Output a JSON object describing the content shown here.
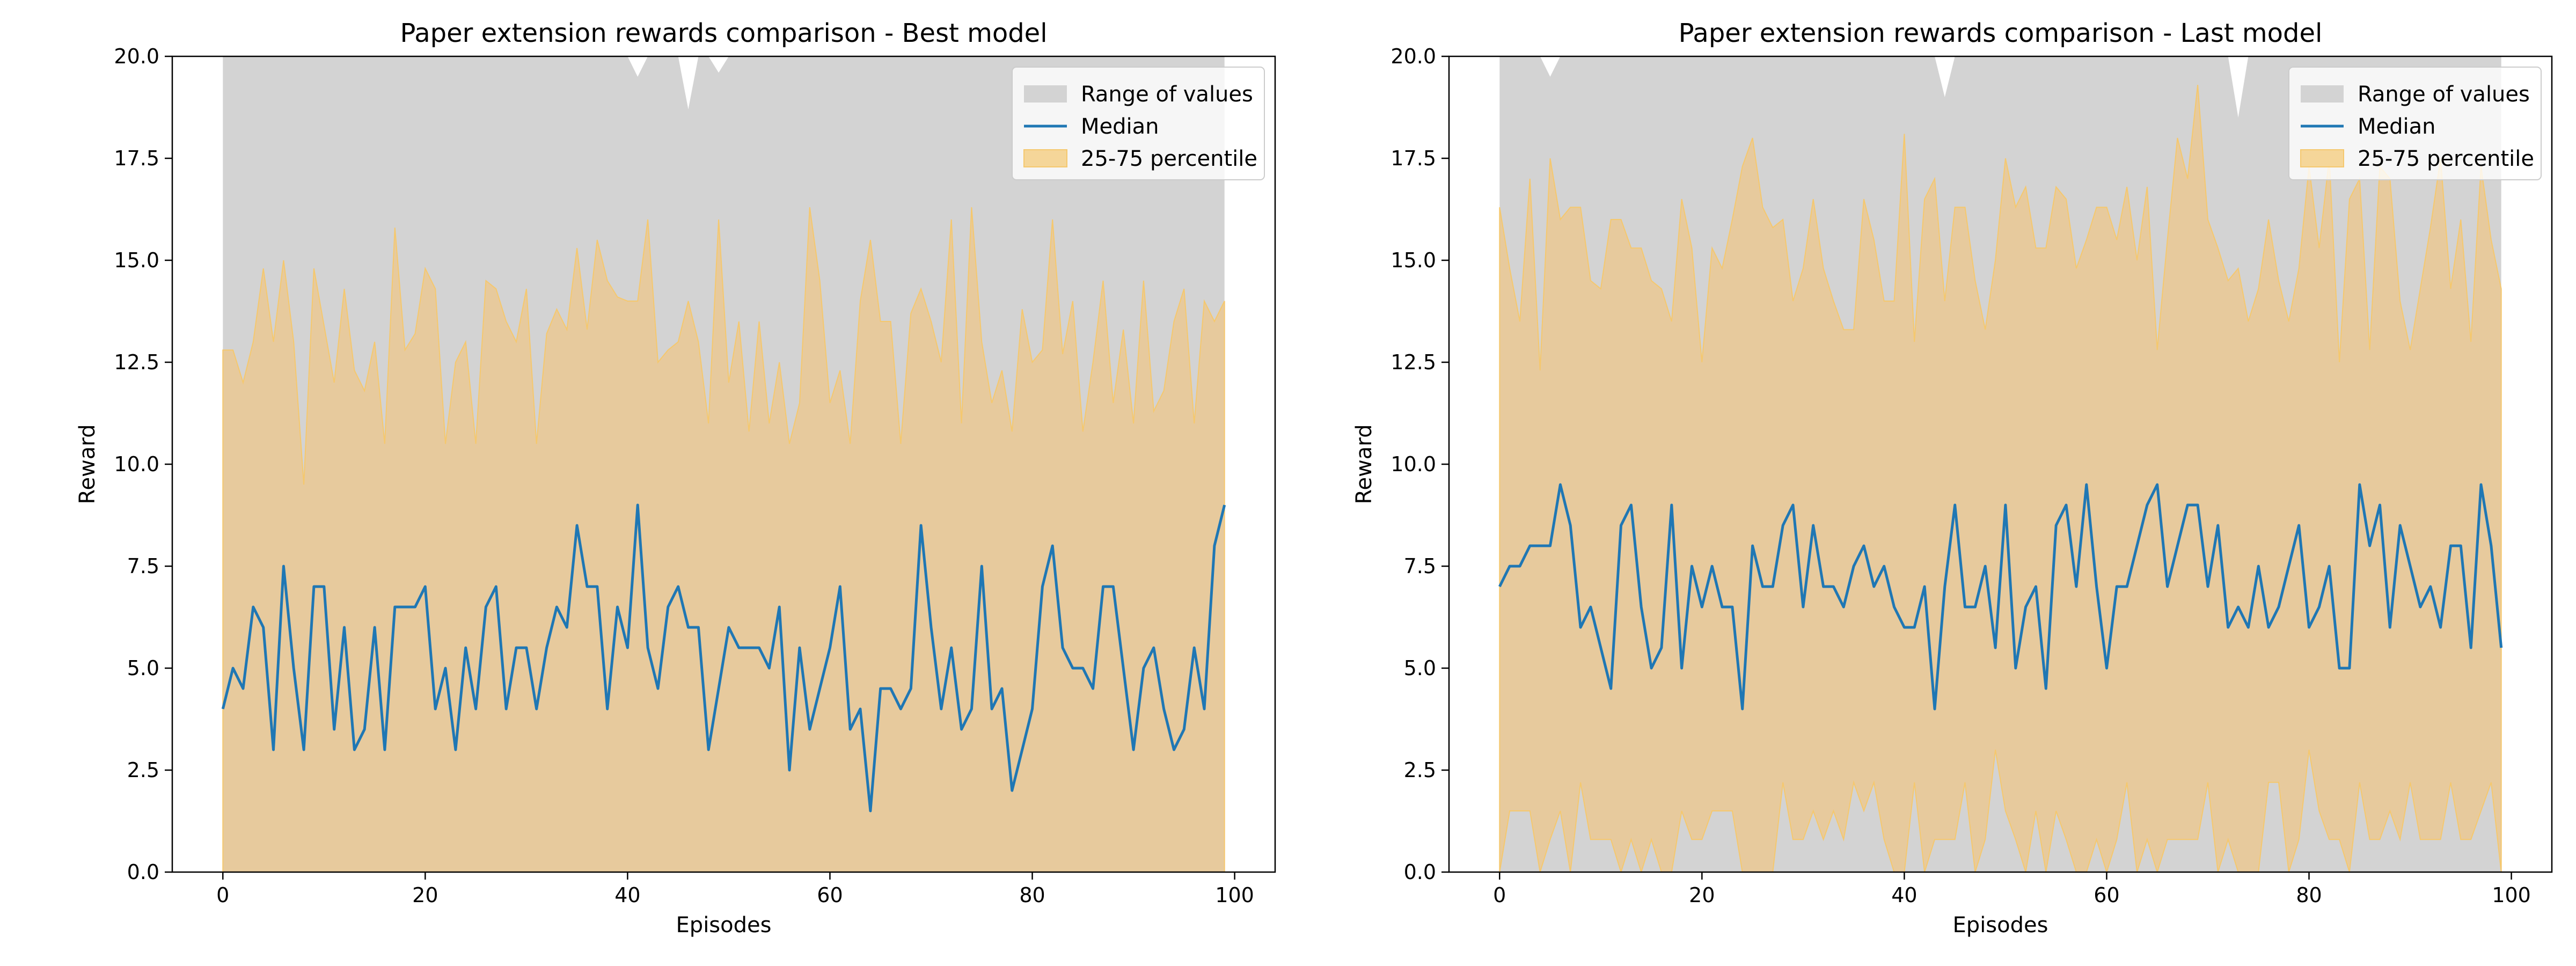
{
  "chart_data": [
    {
      "type": "area",
      "title": "Paper extension rewards comparison - Best model",
      "xlabel": "Episodes",
      "ylabel": "Reward",
      "xlim": [
        -5,
        104
      ],
      "ylim": [
        0,
        20
      ],
      "xticks": [
        0,
        20,
        40,
        60,
        80,
        100
      ],
      "yticks": [
        0.0,
        2.5,
        5.0,
        7.5,
        10.0,
        12.5,
        15.0,
        17.5,
        20.0
      ],
      "grid": false,
      "legend": {
        "position": "top-right",
        "entries": [
          {
            "label": "Range of values",
            "kind": "patch",
            "color": "#d3d3d3"
          },
          {
            "label": "Median",
            "kind": "line",
            "color": "#1f77b4"
          },
          {
            "label": "25-75 percentile",
            "kind": "patch",
            "color": "#f5d699"
          }
        ]
      },
      "colors": {
        "range": "#d3d3d3",
        "median": "#1f77b4",
        "percentile_fill": "#e9c997",
        "percentile_edge": "#f5c86e"
      },
      "series": [
        {
          "name": "Range of values",
          "kind": "band",
          "min": [
            0
          ],
          "max": [
            20,
            20,
            20,
            20,
            20,
            20,
            20,
            20,
            20,
            20,
            20,
            20,
            20,
            20,
            20,
            20,
            20,
            20,
            20,
            20,
            20,
            20,
            20,
            20,
            20,
            20,
            20,
            20,
            20,
            20,
            20,
            20,
            20,
            20,
            20,
            20,
            20,
            20,
            20,
            20,
            20,
            19.5,
            20,
            20,
            20,
            20,
            18.7,
            20,
            20,
            19.6,
            20,
            20,
            20,
            20,
            20,
            20,
            20,
            20,
            20,
            20,
            20,
            20,
            20,
            20,
            20,
            20,
            20,
            20,
            20,
            20,
            20,
            20,
            20,
            20,
            20,
            20,
            20,
            20,
            20,
            20,
            20,
            20,
            20,
            20,
            20,
            20,
            20,
            20,
            20,
            20,
            20,
            20,
            20,
            20,
            20,
            20,
            20,
            20,
            20,
            20
          ]
        },
        {
          "name": "Median",
          "kind": "line",
          "values": [
            4,
            5,
            4.5,
            6.5,
            6,
            3,
            7.5,
            5,
            3,
            7,
            7,
            3.5,
            6,
            3,
            3.5,
            6,
            3,
            6.5,
            6.5,
            6.5,
            7,
            4,
            5,
            3,
            5.5,
            4,
            6.5,
            7,
            4,
            5.5,
            5.5,
            4,
            5.5,
            6.5,
            6,
            8.5,
            7,
            7,
            4,
            6.5,
            5.5,
            9,
            5.5,
            4.5,
            6.5,
            7,
            6,
            6,
            3,
            4.5,
            6,
            5.5,
            5.5,
            5.5,
            5,
            6.5,
            2.5,
            5.5,
            3.5,
            4.5,
            5.5,
            7,
            3.5,
            4,
            1.5,
            4.5,
            4.5,
            4,
            4.5,
            8.5,
            6,
            4,
            5.5,
            3.5,
            4,
            7.5,
            4,
            4.5,
            2,
            3,
            4,
            7,
            8,
            5.5,
            5,
            5,
            4.5,
            7,
            7,
            5,
            3,
            5,
            5.5,
            4,
            3,
            3.5,
            5.5,
            4,
            8,
            9
          ]
        },
        {
          "name": "25-75 percentile",
          "kind": "band",
          "lower": [
            0
          ],
          "upper": [
            12.8,
            12.8,
            12,
            13,
            14.8,
            13,
            15,
            13,
            9.5,
            14.8,
            13.4,
            12,
            14.3,
            12.3,
            11.8,
            13,
            10.5,
            15.8,
            12.8,
            13.2,
            14.8,
            14.3,
            10.5,
            12.5,
            13,
            10.5,
            14.5,
            14.3,
            13.5,
            13,
            14.3,
            10.5,
            13.2,
            13.8,
            13.3,
            15.3,
            13.3,
            15.5,
            14.5,
            14.1,
            14,
            14,
            16,
            12.5,
            12.8,
            13,
            14,
            13,
            11,
            16,
            12,
            13.5,
            10.8,
            13.5,
            11,
            12.5,
            10.5,
            11.5,
            16.3,
            14.5,
            11.5,
            12.3,
            10.5,
            14,
            15.5,
            13.5,
            13.5,
            10.5,
            13.7,
            14.3,
            13.5,
            12.5,
            16,
            11,
            16.3,
            13,
            11.5,
            12.3,
            10.8,
            13.8,
            12.5,
            12.8,
            16,
            12.7,
            14,
            10.8,
            12.5,
            14.5,
            11.5,
            13.3,
            11,
            14.5,
            11.3,
            11.8,
            13.5,
            14.3,
            11,
            14,
            13.5,
            14,
            13.3
          ]
        }
      ]
    },
    {
      "type": "area",
      "title": "Paper extension rewards comparison - Last model",
      "xlabel": "Episodes",
      "ylabel": "Reward",
      "xlim": [
        -5,
        104
      ],
      "ylim": [
        0,
        20
      ],
      "xticks": [
        0,
        20,
        40,
        60,
        80,
        100
      ],
      "yticks": [
        0.0,
        2.5,
        5.0,
        7.5,
        10.0,
        12.5,
        15.0,
        17.5,
        20.0
      ],
      "grid": false,
      "legend": {
        "position": "top-right",
        "entries": [
          {
            "label": "Range of values",
            "kind": "patch",
            "color": "#d3d3d3"
          },
          {
            "label": "Median",
            "kind": "line",
            "color": "#1f77b4"
          },
          {
            "label": "25-75 percentile",
            "kind": "patch",
            "color": "#f5d699"
          }
        ]
      },
      "colors": {
        "range": "#d3d3d3",
        "median": "#1f77b4",
        "percentile_fill": "#e9c997",
        "percentile_edge": "#f5c86e"
      },
      "series": [
        {
          "name": "Range of values",
          "kind": "band",
          "min": [
            0
          ],
          "max": [
            20,
            20,
            20,
            20,
            20,
            19.5,
            20,
            20,
            20,
            20,
            20,
            20,
            20,
            20,
            20,
            20,
            20,
            20,
            20,
            20,
            20,
            20,
            20,
            20,
            20,
            20,
            20,
            20,
            20,
            20,
            20,
            20,
            20,
            20,
            20,
            20,
            20,
            20,
            20,
            20,
            20,
            20,
            20,
            20,
            19,
            20,
            20,
            20,
            20,
            20,
            20,
            20,
            20,
            20,
            20,
            20,
            20,
            20,
            20,
            20,
            20,
            20,
            20,
            20,
            20,
            20,
            20,
            20,
            20,
            20,
            20,
            20,
            20,
            18.5,
            20,
            20,
            20,
            20,
            20,
            20,
            20,
            20,
            20,
            20,
            20,
            20,
            20,
            20,
            20,
            20,
            20,
            20,
            20,
            20,
            20,
            20,
            20,
            20,
            20,
            20
          ]
        },
        {
          "name": "Median",
          "kind": "line",
          "values": [
            7,
            7.5,
            7.5,
            8,
            8,
            8,
            9.5,
            8.5,
            6,
            6.5,
            5.5,
            4.5,
            8.5,
            9,
            6.5,
            5,
            5.5,
            9,
            5,
            7.5,
            6.5,
            7.5,
            6.5,
            6.5,
            4,
            8,
            7,
            7,
            8.5,
            9,
            6.5,
            8.5,
            7,
            7,
            6.5,
            7.5,
            8,
            7,
            7.5,
            6.5,
            6,
            6,
            7,
            4,
            7,
            9,
            6.5,
            6.5,
            7.5,
            5.5,
            9,
            5,
            6.5,
            7,
            4.5,
            8.5,
            9,
            7,
            9.5,
            7,
            5,
            7,
            7,
            8,
            9,
            9.5,
            7,
            8,
            9,
            9,
            7,
            8.5,
            6,
            6.5,
            6,
            7.5,
            6,
            6.5,
            7.5,
            8.5,
            6,
            6.5,
            7.5,
            5,
            5,
            9.5,
            8,
            9,
            6,
            8.5,
            7.5,
            6.5,
            7,
            6,
            8,
            8,
            5.5,
            9.5,
            8,
            5.5
          ]
        },
        {
          "name": "25-75 percentile",
          "kind": "band",
          "lower": [
            0,
            1.5,
            1.5,
            1.5,
            0,
            0.8,
            1.5,
            0,
            2.2,
            0.8,
            0.8,
            0.8,
            0,
            0.8,
            0,
            0.8,
            0,
            0,
            1.5,
            0.8,
            0.8,
            1.5,
            1.5,
            1.5,
            0,
            0,
            0,
            0,
            2.2,
            0.8,
            0.8,
            1.5,
            0.8,
            1.5,
            0.8,
            2.2,
            1.5,
            2.2,
            0.8,
            0,
            0,
            2.2,
            0,
            0.8,
            0.8,
            0.8,
            2.2,
            0,
            0.8,
            3,
            1.5,
            0.8,
            0,
            1.5,
            0,
            1.5,
            0.8,
            0,
            0,
            0.8,
            0,
            0.8,
            2.2,
            0,
            0.8,
            0,
            0.8,
            0.8,
            0.8,
            0.8,
            2.2,
            0,
            0.8,
            0,
            0,
            0,
            2.2,
            2.2,
            0,
            0.8,
            3,
            1.5,
            0.8,
            0.8,
            0,
            2.2,
            0.8,
            0.8,
            1.5,
            0.8,
            2.2,
            0.8,
            0.8,
            0.8,
            2.2,
            0.8,
            0.8,
            1.5,
            2.2,
            0,
            2.2
          ]
        },
        {
          "name": "25-75 percentile (upper)",
          "kind": "band-upper",
          "upper": [
            16.3,
            14.8,
            13.5,
            17,
            12.3,
            17.5,
            16,
            16.3,
            16.3,
            14.5,
            14.3,
            16,
            16,
            15.3,
            15.3,
            14.5,
            14.3,
            13.5,
            16.5,
            15.3,
            12.5,
            15.3,
            14.8,
            16,
            17.3,
            18,
            16.3,
            15.8,
            16,
            14,
            14.8,
            16.5,
            14.8,
            14,
            13.3,
            13.3,
            16.5,
            15.5,
            14,
            14,
            18.1,
            13,
            16.5,
            17,
            14,
            16.3,
            16.3,
            14.5,
            13.3,
            15,
            17.5,
            16.3,
            16.8,
            15.3,
            15.3,
            16.8,
            16.5,
            14.8,
            15.5,
            16.3,
            16.3,
            15.5,
            16.8,
            15,
            16.8,
            12.8,
            15.5,
            18,
            17,
            19.3,
            16,
            15.3,
            14.5,
            14.8,
            13.5,
            14.3,
            16,
            14.5,
            13.5,
            14.8,
            17.3,
            15.3,
            17.5,
            12.5,
            16.5,
            17,
            12.8,
            17.3,
            17,
            14,
            12.8,
            14.3,
            15.8,
            17.5,
            14.3,
            16,
            13,
            17.3,
            15.5,
            14.3
          ]
        }
      ]
    }
  ]
}
